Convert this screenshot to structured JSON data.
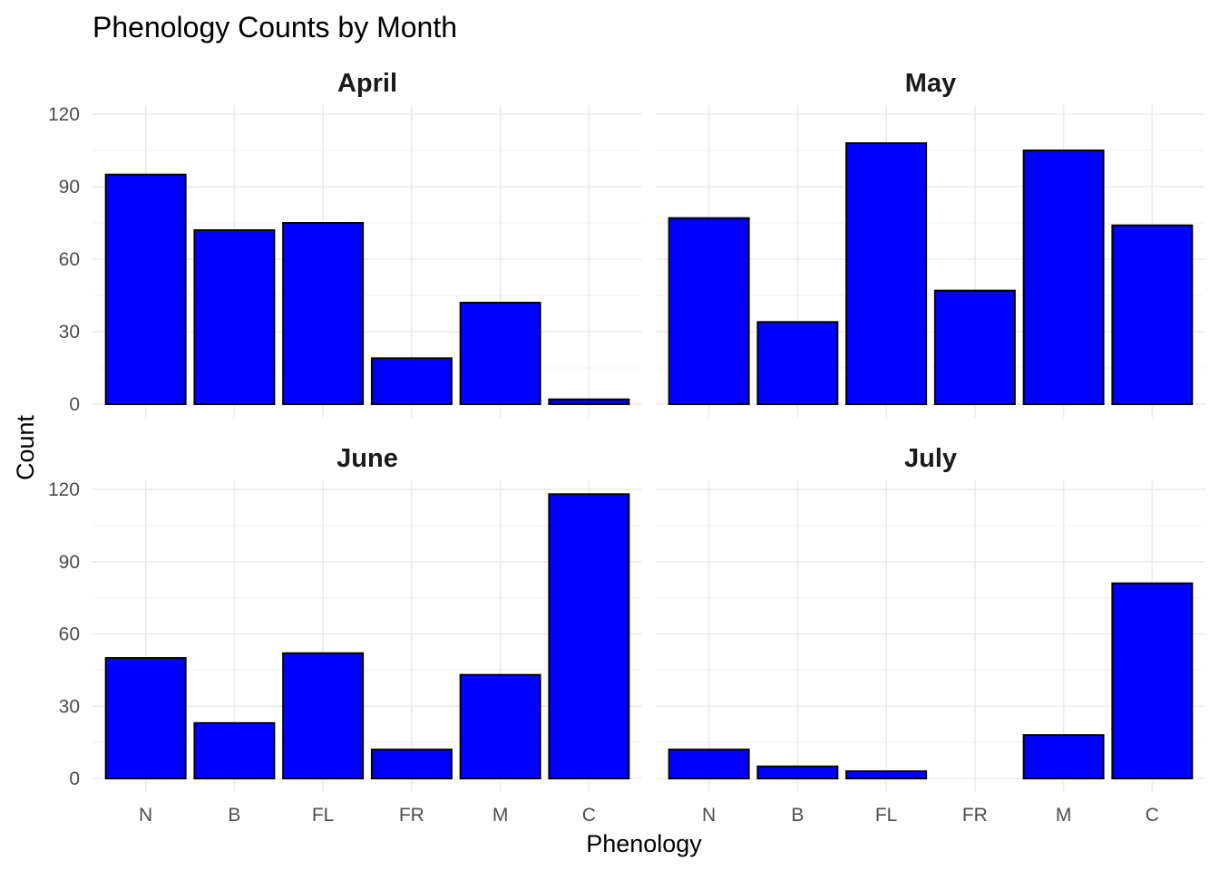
{
  "chart_data": {
    "type": "bar",
    "title": "Phenology Counts by Month",
    "xlabel": "Phenology",
    "ylabel": "Count",
    "categories": [
      "N",
      "B",
      "FL",
      "FR",
      "M",
      "C"
    ],
    "ylim": [
      0,
      120
    ],
    "yticks": [
      "0",
      "30",
      "60",
      "90",
      "120"
    ],
    "grid": true,
    "bar_fill": "#0000ff",
    "bar_outline": "#000000",
    "panels": [
      {
        "name": "April",
        "values": [
          95,
          72,
          75,
          19,
          42,
          2
        ]
      },
      {
        "name": "May",
        "values": [
          77,
          34,
          108,
          47,
          105,
          74
        ]
      },
      {
        "name": "June",
        "values": [
          50,
          23,
          52,
          12,
          43,
          118
        ]
      },
      {
        "name": "July",
        "values": [
          12,
          5,
          3,
          0,
          18,
          81
        ]
      }
    ]
  }
}
